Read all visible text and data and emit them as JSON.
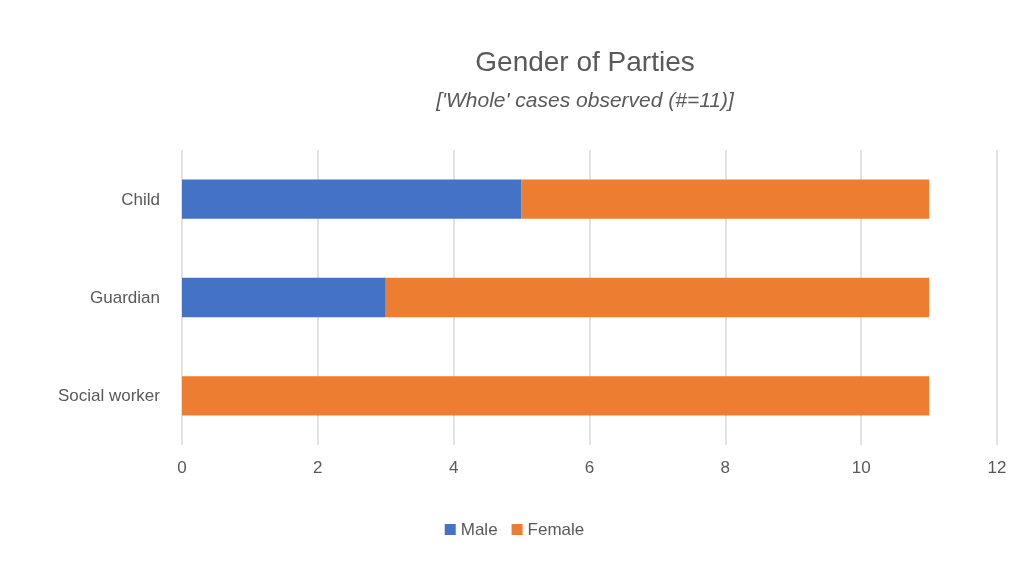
{
  "chart_data": {
    "type": "bar",
    "title": "Gender of Parties",
    "subtitle": "['Whole' cases observed (#=11)]",
    "orientation": "horizontal",
    "stacked": true,
    "categories": [
      "Child",
      "Guardian",
      "Social worker"
    ],
    "series": [
      {
        "name": "Male",
        "color": "#4472c4",
        "values": [
          5,
          3,
          0
        ]
      },
      {
        "name": "Female",
        "color": "#ed7d31",
        "values": [
          6,
          8,
          11
        ]
      }
    ],
    "xlim": [
      0,
      12
    ],
    "xticks": [
      0,
      2,
      4,
      6,
      8,
      10,
      12
    ],
    "grid": "x",
    "legend": "bottom"
  }
}
